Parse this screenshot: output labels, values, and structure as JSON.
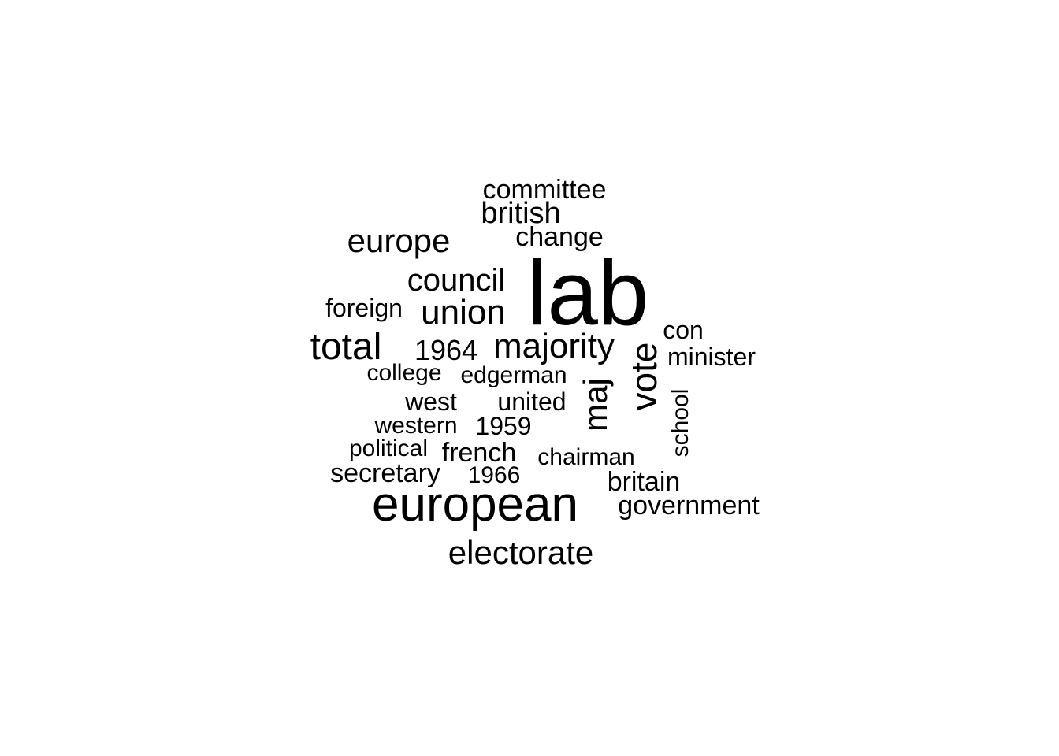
{
  "word_cloud": {
    "text_color": "#000000",
    "background_color": "#ffffff",
    "words": [
      {
        "text": "lab"
      },
      {
        "text": "european"
      },
      {
        "text": "vote"
      },
      {
        "text": "majority"
      },
      {
        "text": "maj"
      },
      {
        "text": "total"
      },
      {
        "text": "union"
      },
      {
        "text": "europe"
      },
      {
        "text": "council"
      },
      {
        "text": "electorate"
      },
      {
        "text": "british"
      },
      {
        "text": "committee"
      },
      {
        "text": "change"
      },
      {
        "text": "1964"
      },
      {
        "text": "con"
      },
      {
        "text": "minister"
      },
      {
        "text": "foreign"
      },
      {
        "text": "college"
      },
      {
        "text": "edgerman"
      },
      {
        "text": "west"
      },
      {
        "text": "united"
      },
      {
        "text": "western"
      },
      {
        "text": "1959"
      },
      {
        "text": "political"
      },
      {
        "text": "french"
      },
      {
        "text": "chairman"
      },
      {
        "text": "school"
      },
      {
        "text": "secretary"
      },
      {
        "text": "1966"
      },
      {
        "text": "britain"
      },
      {
        "text": "government"
      }
    ]
  }
}
